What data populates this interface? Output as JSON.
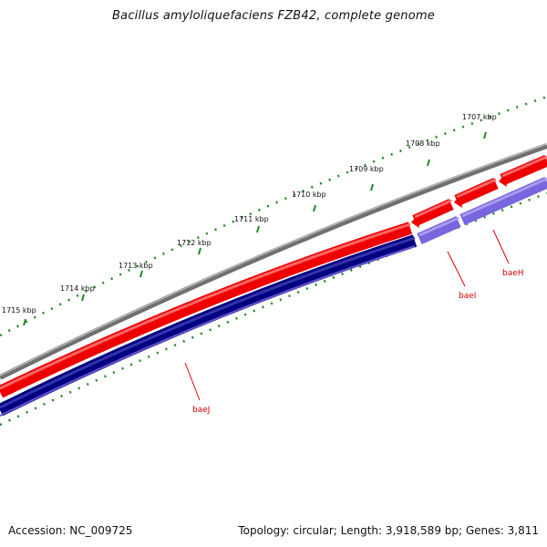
{
  "title": "Bacillus amyloliquefaciens FZB42, complete genome",
  "footer": {
    "accession": "Accession: NC_009725",
    "topology": "Topology: circular; Length: 3,918,589 bp; Genes: 3,811"
  },
  "ticks": [
    "1715 kbp",
    "1714 kbp",
    "1713 kbp",
    "1712 kbp",
    "1711 kbp",
    "1710 kbp",
    "1709 kbp",
    "1708 kbp",
    "1707 kbp"
  ],
  "genes": [
    "baeJ",
    "baeI",
    "baeH"
  ],
  "colors": {
    "backbone": "#808080",
    "forward_cds": "#ff0000",
    "reverse_cds": "#000080",
    "reverse_cds_light": "#7766dd",
    "ticks": "#228822",
    "gene_label": "#cc0000"
  }
}
